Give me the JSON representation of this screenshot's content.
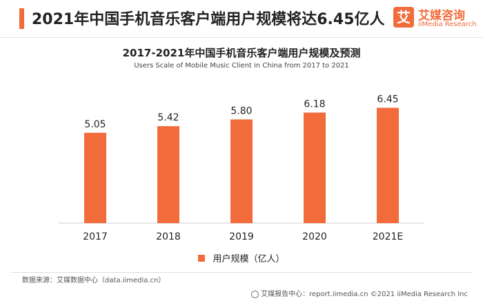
{
  "header": {
    "title": "2021年中国手机音乐客户端用户规模将达6.45亿人"
  },
  "logo": {
    "mark": "艾",
    "name": "艾媒咨询",
    "sub": "iiMedia Research"
  },
  "footer": {
    "source": "数据来源：艾媒数据中心（data.iimedia.cn）",
    "right": "艾媒报告中心：report.iimedia.cn ©2021  iiMedia Research  Inc"
  },
  "colors": {
    "accent": "#f26b3a",
    "bar": "#f26b3a"
  },
  "chart_data": {
    "type": "bar",
    "title": "2017-2021年中国手机音乐客户端用户规模及预测",
    "subtitle": "Users Scale of Mobile Music Client  in China from 2017 to 2021",
    "categories": [
      "2017",
      "2018",
      "2019",
      "2020",
      "2021E"
    ],
    "series": [
      {
        "name": "用户规模（亿人）",
        "values": [
          5.05,
          5.42,
          5.8,
          6.18,
          6.45
        ]
      }
    ],
    "value_labels": [
      "5.05",
      "5.42",
      "5.80",
      "6.18",
      "6.45"
    ],
    "ylim": [
      0,
      7.7
    ],
    "grid": false,
    "legend": "bottom-center"
  }
}
